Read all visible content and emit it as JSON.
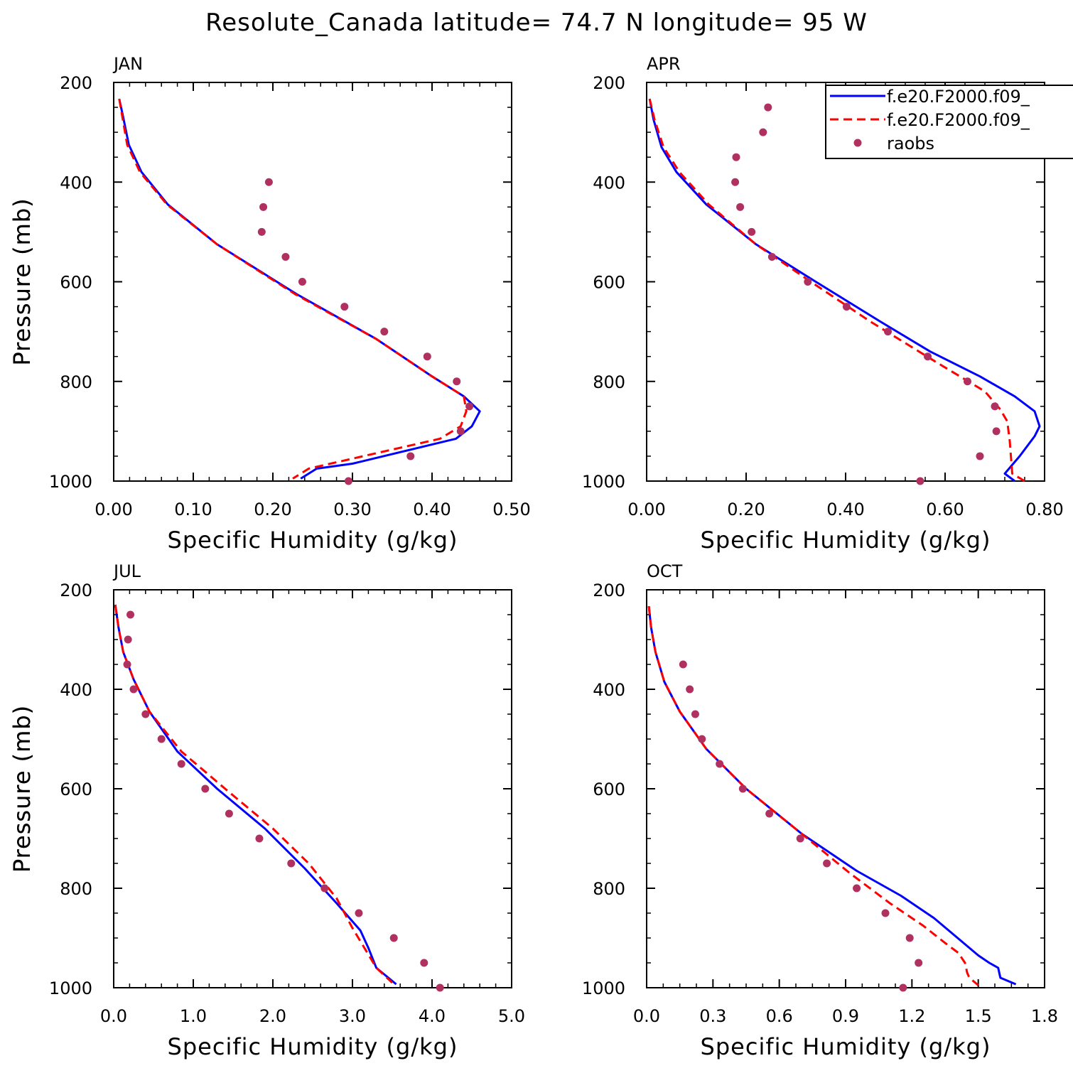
{
  "title": "Resolute_Canada  latitude= 74.7 N longitude= 95 W",
  "colors": {
    "model1": "#0000ff",
    "model2": "#ff0000",
    "raobs": "#b03060"
  },
  "legend": {
    "entries": [
      {
        "label": "f.e20.F2000.f09_",
        "style": "solid",
        "color": "#0000ff"
      },
      {
        "label": "f.e20.F2000.f09_",
        "style": "dashed",
        "color": "#ff0000"
      },
      {
        "label": "raobs",
        "style": "dot",
        "color": "#b03060"
      }
    ]
  },
  "chart_data": [
    {
      "type": "line",
      "panel": "JAN",
      "xlabel": "Specific Humidity (g/kg)",
      "ylabel": "Pressure (mb)",
      "xlim": [
        0,
        0.5
      ],
      "ylim": [
        200,
        1000
      ],
      "xticks": [
        "0.00",
        "0.10",
        "0.20",
        "0.30",
        "0.40",
        "0.50"
      ],
      "yticks": [
        "200",
        "400",
        "600",
        "800",
        "1000"
      ],
      "series": [
        {
          "name": "f.e20.F2000.f09_ (solid)",
          "x": [
            0.007,
            0.012,
            0.019,
            0.035,
            0.068,
            0.13,
            0.23,
            0.33,
            0.4,
            0.44,
            0.46,
            0.45,
            0.43,
            0.3,
            0.255,
            0.235
          ],
          "y": [
            233,
            270,
            325,
            380,
            445,
            525,
            625,
            715,
            790,
            830,
            860,
            890,
            915,
            965,
            975,
            995
          ]
        },
        {
          "name": "f.e20.F2000.f09_ (dashed)",
          "x": [
            0.007,
            0.011,
            0.017,
            0.033,
            0.067,
            0.13,
            0.228,
            0.33,
            0.4,
            0.44,
            0.443,
            0.436,
            0.41,
            0.3,
            0.245,
            0.225
          ],
          "y": [
            233,
            270,
            325,
            380,
            445,
            525,
            625,
            715,
            790,
            830,
            860,
            890,
            915,
            955,
            975,
            995
          ]
        },
        {
          "name": "raobs",
          "x": [
            0.195,
            0.188,
            0.186,
            0.216,
            0.237,
            0.29,
            0.34,
            0.394,
            0.431,
            0.447,
            0.436,
            0.373,
            0.295
          ],
          "y": [
            400,
            450,
            500,
            550,
            600,
            650,
            700,
            750,
            800,
            850,
            900,
            950,
            1000
          ]
        }
      ]
    },
    {
      "type": "line",
      "panel": "APR",
      "xlabel": "Specific Humidity (g/kg)",
      "ylabel": "Pressure (mb)",
      "xlim": [
        0,
        0.8
      ],
      "ylim": [
        200,
        1000
      ],
      "xticks": [
        "0.00",
        "0.20",
        "0.40",
        "0.60",
        "0.80"
      ],
      "yticks": [
        "200",
        "400",
        "600",
        "800",
        "1000"
      ],
      "series": [
        {
          "name": "f.e20.F2000.f09_ (solid)",
          "x": [
            0.006,
            0.014,
            0.03,
            0.06,
            0.12,
            0.22,
            0.34,
            0.47,
            0.57,
            0.67,
            0.74,
            0.78,
            0.79,
            0.78,
            0.75,
            0.72,
            0.74
          ],
          "y": [
            233,
            275,
            330,
            380,
            445,
            525,
            600,
            680,
            740,
            790,
            830,
            860,
            890,
            910,
            950,
            985,
            1000
          ]
        },
        {
          "name": "f.e20.F2000.f09_ (dashed)",
          "x": [
            0.006,
            0.016,
            0.034,
            0.066,
            0.125,
            0.22,
            0.33,
            0.45,
            0.58,
            0.68,
            0.71,
            0.725,
            0.73,
            0.735,
            0.76
          ],
          "y": [
            233,
            275,
            330,
            380,
            445,
            525,
            600,
            680,
            760,
            820,
            855,
            880,
            920,
            985,
            1000
          ]
        },
        {
          "name": "raobs",
          "x": [
            0.244,
            0.234,
            0.18,
            0.178,
            0.188,
            0.211,
            0.252,
            0.324,
            0.402,
            0.485,
            0.565,
            0.645,
            0.7,
            0.703,
            0.67,
            0.55
          ],
          "y": [
            250,
            300,
            350,
            400,
            450,
            500,
            550,
            600,
            650,
            700,
            750,
            800,
            850,
            900,
            950,
            1000
          ]
        }
      ]
    },
    {
      "type": "line",
      "panel": "JUL",
      "xlabel": "Specific Humidity (g/kg)",
      "ylabel": "Pressure (mb)",
      "xlim": [
        0,
        5
      ],
      "ylim": [
        200,
        1000
      ],
      "xticks": [
        "0.0",
        "1.0",
        "2.0",
        "3.0",
        "4.0",
        "5.0"
      ],
      "yticks": [
        "200",
        "400",
        "600",
        "800",
        "1000"
      ],
      "series": [
        {
          "name": "f.e20.F2000.f09_ (solid)",
          "x": [
            0.02,
            0.06,
            0.12,
            0.25,
            0.45,
            0.8,
            1.3,
            1.9,
            2.4,
            2.8,
            3.1,
            3.2,
            3.3,
            3.55
          ],
          "y": [
            230,
            275,
            325,
            380,
            445,
            525,
            600,
            680,
            760,
            830,
            885,
            920,
            960,
            993
          ]
        },
        {
          "name": "f.e20.F2000.f09_ (dashed)",
          "x": [
            0.02,
            0.06,
            0.12,
            0.25,
            0.45,
            0.85,
            1.4,
            2.0,
            2.45,
            2.8,
            3.0,
            3.15,
            3.3,
            3.5
          ],
          "y": [
            230,
            275,
            325,
            380,
            445,
            525,
            600,
            680,
            750,
            820,
            880,
            920,
            960,
            990
          ]
        },
        {
          "name": "raobs",
          "x": [
            0.21,
            0.18,
            0.17,
            0.25,
            0.4,
            0.6,
            0.85,
            1.15,
            1.45,
            1.83,
            2.23,
            2.65,
            3.08,
            3.52,
            3.9,
            4.1
          ],
          "y": [
            250,
            300,
            350,
            400,
            450,
            500,
            550,
            600,
            650,
            700,
            750,
            800,
            850,
            900,
            950,
            1000
          ]
        }
      ]
    },
    {
      "type": "line",
      "panel": "OCT",
      "xlabel": "Specific Humidity (g/kg)",
      "ylabel": "Pressure (mb)",
      "xlim": [
        0,
        1.8
      ],
      "ylim": [
        200,
        1000
      ],
      "xticks": [
        "0.0",
        "0.3",
        "0.6",
        "0.9",
        "1.2",
        "1.5",
        "1.8"
      ],
      "yticks": [
        "200",
        "400",
        "600",
        "800",
        "1000"
      ],
      "series": [
        {
          "name": "f.e20.F2000.f09_ (solid)",
          "x": [
            0.01,
            0.02,
            0.04,
            0.08,
            0.15,
            0.27,
            0.45,
            0.7,
            0.95,
            1.15,
            1.3,
            1.42,
            1.5,
            1.55,
            1.59,
            1.6,
            1.67
          ],
          "y": [
            233,
            275,
            325,
            385,
            445,
            520,
            600,
            690,
            765,
            815,
            860,
            905,
            935,
            950,
            960,
            980,
            993
          ]
        },
        {
          "name": "f.e20.F2000.f09_ (dashed)",
          "x": [
            0.01,
            0.02,
            0.04,
            0.08,
            0.15,
            0.27,
            0.45,
            0.7,
            0.92,
            1.1,
            1.25,
            1.35,
            1.41,
            1.44,
            1.45,
            1.46,
            1.5
          ],
          "y": [
            233,
            275,
            325,
            385,
            445,
            520,
            600,
            690,
            770,
            830,
            875,
            910,
            930,
            950,
            970,
            980,
            995
          ]
        },
        {
          "name": "raobs",
          "x": [
            0.165,
            0.195,
            0.22,
            0.25,
            0.33,
            0.435,
            0.555,
            0.695,
            0.815,
            0.95,
            1.08,
            1.19,
            1.23,
            1.16
          ],
          "y": [
            350,
            400,
            450,
            500,
            550,
            600,
            650,
            700,
            750,
            800,
            850,
            900,
            950,
            1000
          ]
        }
      ]
    }
  ]
}
